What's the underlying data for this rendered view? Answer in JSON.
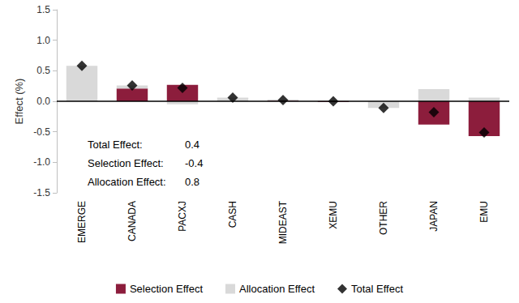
{
  "chart_data": {
    "type": "bar",
    "y_label": "Effect (%)",
    "categories": [
      "EMERGE",
      "CANADA",
      "PACXJ",
      "CASH",
      "MIDEAST",
      "XEMU",
      "OTHER",
      "JAPAN",
      "EMU"
    ],
    "series": [
      {
        "name": "Selection Effect",
        "type": "bar",
        "color": "#8c1d3c",
        "values": [
          0.0,
          0.21,
          0.27,
          0.0,
          0.01,
          -0.01,
          0.0,
          -0.38,
          -0.57
        ]
      },
      {
        "name": "Allocation Effect",
        "type": "bar",
        "color": "#d9d9d9",
        "values": [
          0.58,
          0.05,
          -0.05,
          0.06,
          0.02,
          0.01,
          -0.11,
          0.2,
          0.06
        ]
      },
      {
        "name": "Total Effect",
        "type": "scatter",
        "color": "#000000",
        "marker": "diamond",
        "values": [
          0.58,
          0.26,
          0.22,
          0.06,
          0.02,
          0.0,
          -0.11,
          -0.18,
          -0.51
        ]
      }
    ],
    "stacked": true,
    "ylim": [
      -1.5,
      1.5
    ],
    "yticks": [
      -1.5,
      {
        "value": -1.0,
        "label": "-1.0"
      },
      -0.5,
      {
        "value": 0.0,
        "label": "0.0"
      },
      0.5,
      {
        "value": 1.0,
        "label": "1.0"
      },
      1.5
    ],
    "grid": false,
    "legend": "bottom",
    "annotations": [
      {
        "label": "Total Effect:",
        "value": 0.4
      },
      {
        "label": "Selection Effect:",
        "value": -0.4
      },
      {
        "label": "Allocation Effect:",
        "value": 0.8
      }
    ]
  }
}
